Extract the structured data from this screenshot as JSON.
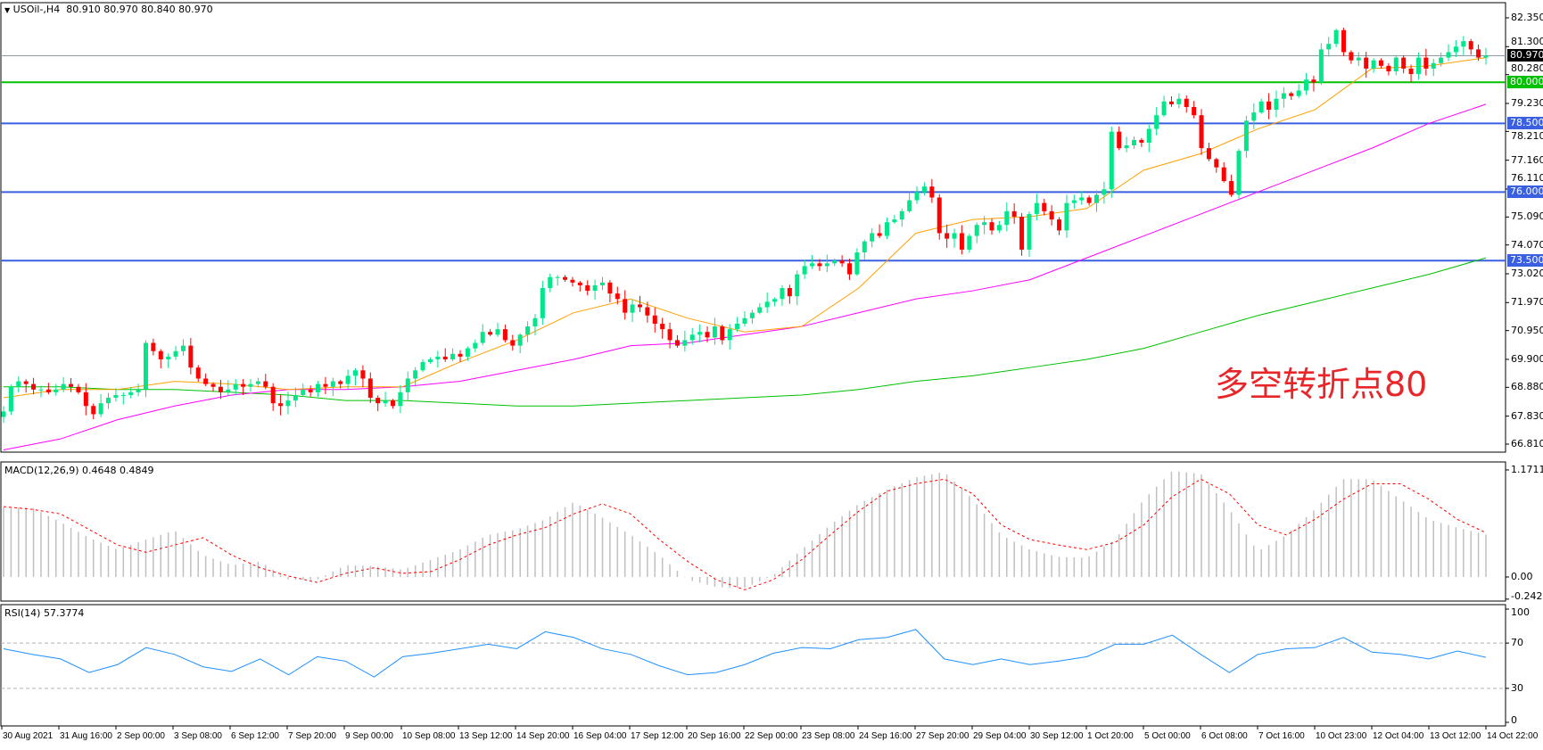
{
  "header": {
    "symbol": "USOil-,H4",
    "ohlc": "80.910 80.970 80.840 80.970"
  },
  "macd_header": "MACD(12,26,9) 0.4648 0.4849",
  "rsi_header": "RSI(14) 57.3774",
  "annotation": "多空转折点80",
  "colors": {
    "bull": "#00e68a",
    "bear": "#ff0000",
    "ma_fast": "#ffa000",
    "ma_mid": "#ff00ff",
    "ma_slow": "#00c000",
    "level_green": "#00c000",
    "level_blue": "#3a5fe0",
    "macd_hist": "#c0c0c0",
    "macd_signal": "#ff0000",
    "rsi": "#1e90ff"
  },
  "price_axis": [
    "82.350",
    "81.300",
    "80.280",
    "79.230",
    "78.210",
    "77.160",
    "76.110",
    "75.090",
    "74.070",
    "73.020",
    "71.970",
    "70.950",
    "69.900",
    "68.880",
    "67.830",
    "66.810"
  ],
  "current_price": "80.970",
  "levels": [
    {
      "value": 80.0,
      "label": "80.000",
      "color": "green"
    },
    {
      "value": 78.5,
      "label": "78.500",
      "color": "blue"
    },
    {
      "value": 76.0,
      "label": "76.000",
      "color": "blue"
    },
    {
      "value": 73.5,
      "label": "73.500",
      "color": "blue"
    }
  ],
  "macd_axis": [
    "1.1711",
    "0.00",
    "-0.2424"
  ],
  "rsi_axis": [
    "100",
    "70",
    "30",
    "0"
  ],
  "time_axis": [
    "30 Aug 2021",
    "31 Aug 16:00",
    "2 Sep 00:00",
    "3 Sep 08:00",
    "6 Sep 12:00",
    "7 Sep 20:00",
    "9 Sep 00:00",
    "10 Sep 08:00",
    "13 Sep 12:00",
    "14 Sep 20:00",
    "16 Sep 04:00",
    "17 Sep 12:00",
    "20 Sep 16:00",
    "22 Sep 00:00",
    "23 Sep 08:00",
    "24 Sep 16:00",
    "27 Sep 20:00",
    "29 Sep 04:00",
    "30 Sep 12:00",
    "1 Oct 20:00",
    "5 Oct 00:00",
    "6 Oct 08:00",
    "7 Oct 16:00",
    "10 Oct 23:00",
    "12 Oct 04:00",
    "13 Oct 12:00",
    "14 Oct 22:00"
  ],
  "chart_data": {
    "type": "candlestick",
    "closes": [
      68.0,
      68.9,
      69.1,
      69.0,
      68.8,
      68.8,
      68.7,
      68.8,
      69.0,
      68.9,
      68.7,
      68.2,
      67.9,
      68.3,
      68.5,
      68.6,
      68.6,
      68.7,
      68.8,
      70.5,
      70.2,
      69.9,
      70.0,
      70.2,
      70.4,
      69.6,
      69.2,
      69.0,
      68.9,
      68.7,
      68.8,
      69.0,
      68.9,
      69.0,
      69.1,
      68.9,
      68.3,
      68.2,
      68.4,
      68.6,
      68.8,
      68.7,
      69.0,
      68.9,
      69.1,
      69.0,
      69.3,
      69.5,
      69.2,
      68.5,
      68.3,
      68.4,
      68.2,
      68.7,
      69.2,
      69.5,
      69.8,
      69.9,
      70.0,
      69.9,
      70.1,
      70.0,
      70.3,
      70.5,
      70.9,
      70.8,
      71.0,
      70.6,
      70.4,
      70.8,
      71.1,
      71.4,
      72.5,
      72.9,
      72.9,
      72.8,
      72.7,
      72.6,
      72.4,
      72.6,
      72.7,
      72.3,
      72.1,
      71.6,
      71.9,
      71.8,
      71.5,
      71.2,
      71.0,
      70.6,
      70.4,
      70.6,
      70.8,
      70.9,
      70.7,
      71.1,
      70.6,
      71.0,
      71.2,
      71.4,
      71.6,
      71.8,
      72.0,
      72.1,
      72.5,
      72.2,
      73.0,
      73.3,
      73.4,
      73.3,
      73.4,
      73.5,
      73.4,
      73.0,
      73.8,
      74.2,
      74.5,
      74.4,
      74.9,
      75.0,
      75.3,
      75.7,
      76.0,
      76.2,
      75.8,
      74.5,
      74.3,
      74.5,
      73.9,
      74.4,
      74.8,
      74.9,
      74.6,
      74.8,
      75.3,
      75.1,
      73.9,
      75.2,
      75.6,
      75.3,
      75.0,
      74.6,
      75.6,
      75.7,
      75.8,
      75.6,
      75.9,
      76.1,
      78.2,
      77.6,
      77.7,
      77.9,
      77.8,
      78.3,
      78.8,
      79.3,
      79.2,
      79.4,
      79.1,
      78.8,
      77.6,
      77.2,
      76.9,
      76.4,
      75.9,
      77.5,
      78.6,
      78.9,
      79.3,
      79.0,
      79.4,
      79.6,
      79.5,
      79.7,
      80.1,
      80.0,
      81.2,
      81.4,
      81.9,
      81.1,
      80.8,
      80.9,
      80.5,
      80.8,
      80.6,
      80.4,
      80.9,
      80.5,
      80.3,
      80.9,
      80.5,
      80.7,
      80.9,
      81.1,
      81.3,
      81.5,
      81.2,
      80.9,
      80.97
    ],
    "ma_fast": [
      68.5,
      68.8,
      68.8,
      69.1,
      69.0,
      68.8,
      68.9,
      68.9,
      69.8,
      70.6,
      71.6,
      72.1,
      71.4,
      70.9,
      71.1,
      72.5,
      74.5,
      75.0,
      75.1,
      75.4,
      76.8,
      77.4,
      78.3,
      79.0,
      80.5,
      80.6,
      80.9
    ],
    "ma_mid": [
      66.6,
      67.0,
      67.7,
      68.2,
      68.6,
      68.8,
      68.8,
      68.9,
      69.1,
      69.5,
      69.9,
      70.4,
      70.5,
      70.8,
      71.1,
      71.6,
      72.1,
      72.4,
      72.8,
      73.6,
      74.4,
      75.2,
      76.0,
      76.8,
      77.6,
      78.5,
      79.2
    ],
    "ma_slow": [
      68.9,
      68.9,
      68.8,
      68.8,
      68.7,
      68.6,
      68.4,
      68.4,
      68.3,
      68.2,
      68.2,
      68.3,
      68.4,
      68.5,
      68.6,
      68.8,
      69.1,
      69.3,
      69.6,
      69.9,
      70.3,
      70.9,
      71.5,
      72.0,
      72.5,
      73.0,
      73.6
    ],
    "macd": [
      0.76,
      0.76,
      0.6,
      0.43,
      0.3,
      0.41,
      0.51,
      0.24,
      0.13,
      0.17,
      -0.03,
      -0.03,
      0.13,
      0.12,
      0.08,
      0.19,
      0.3,
      0.46,
      0.52,
      0.63,
      0.82,
      0.65,
      0.46,
      0.24,
      -0.03,
      -0.11,
      -0.12,
      0.02,
      0.3,
      0.57,
      0.8,
      0.96,
      1.09,
      1.15,
      0.85,
      0.46,
      0.3,
      0.22,
      0.21,
      0.41,
      0.85,
      1.16,
      1.13,
      0.74,
      0.28,
      0.46,
      0.74,
      1.07,
      1.07,
      0.85,
      0.63,
      0.54,
      0.4648
    ],
    "signal": [
      0.77,
      0.74,
      0.69,
      0.52,
      0.35,
      0.27,
      0.35,
      0.43,
      0.24,
      0.1,
      0.01,
      -0.06,
      0.04,
      0.1,
      0.04,
      0.06,
      0.19,
      0.35,
      0.46,
      0.54,
      0.69,
      0.8,
      0.69,
      0.41,
      0.17,
      -0.03,
      -0.14,
      -0.03,
      0.19,
      0.46,
      0.72,
      0.94,
      1.02,
      1.07,
      0.91,
      0.57,
      0.41,
      0.35,
      0.3,
      0.38,
      0.57,
      0.88,
      1.07,
      0.91,
      0.57,
      0.46,
      0.63,
      0.85,
      1.02,
      1.02,
      0.85,
      0.63,
      0.4849
    ],
    "rsi": [
      65,
      60,
      56,
      44,
      51,
      66,
      60,
      49,
      45,
      56,
      42,
      58,
      54,
      40,
      58,
      61,
      65,
      69,
      65,
      80,
      75,
      65,
      60,
      50,
      42,
      44,
      51,
      61,
      66,
      65,
      73,
      75,
      82,
      56,
      51,
      56,
      51,
      54,
      58,
      69,
      69,
      77,
      60,
      44,
      60,
      65,
      66,
      75,
      62,
      60,
      56,
      63,
      57.3774
    ],
    "price_range": [
      66.81,
      82.35
    ],
    "macd_range": [
      -0.2424,
      1.1711
    ],
    "rsi_range": [
      0,
      100
    ],
    "rsi_levels": [
      70,
      30
    ]
  }
}
